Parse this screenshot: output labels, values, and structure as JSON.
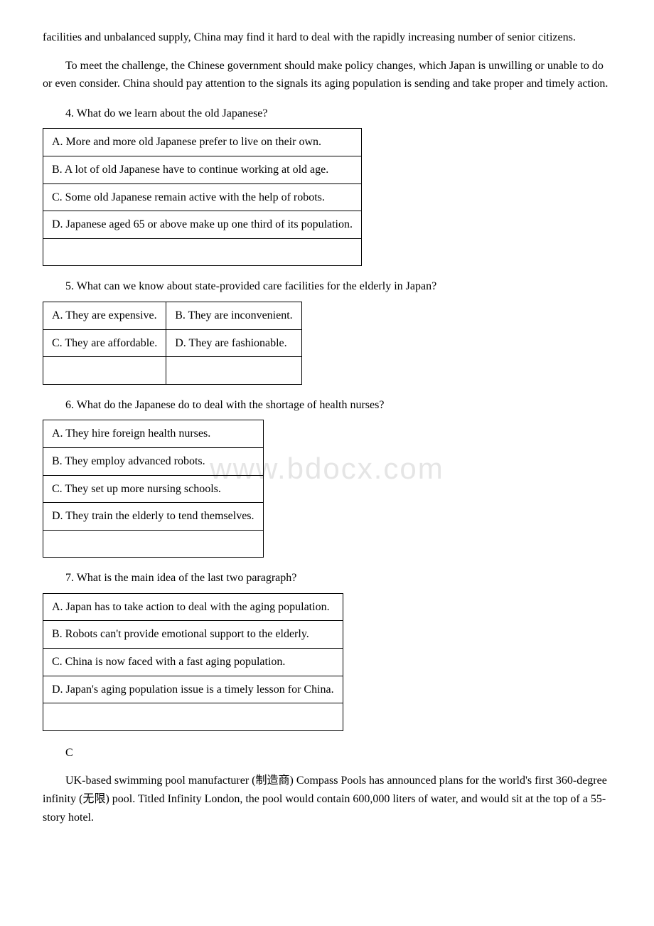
{
  "intro": {
    "p1": "facilities and unbalanced supply, China may find it hard to deal with the rapidly increasing number of senior citizens.",
    "p2": "To meet the challenge, the Chinese government should make policy changes, which Japan is unwilling or unable to do or even consider. China should pay attention to the signals its aging population is sending and take proper and timely action."
  },
  "q4": {
    "text": "4. What do we learn about the old Japanese?",
    "opts": {
      "a": "A. More and more old Japanese prefer to live on their own.",
      "b": "B. A lot of old Japanese have to continue working at old age.",
      "c": "C. Some old Japanese remain active with the help of robots.",
      "d": "D. Japanese aged 65 or above make up one third of its population."
    }
  },
  "q5": {
    "text": "5. What can we know about state-provided care facilities for the elderly in Japan?",
    "opts": {
      "a": "A. They are expensive.",
      "b": "B. They are inconvenient.",
      "c": "C. They are affordable.",
      "d": "D. They are fashionable."
    }
  },
  "q6": {
    "text": "6. What do the Japanese do to deal with the shortage of health nurses?",
    "opts": {
      "a": "A. They hire foreign health nurses.",
      "b": "B. They employ advanced robots.",
      "c": "C. They set up more nursing schools.",
      "d": "D. They train the elderly to tend themselves."
    }
  },
  "q7": {
    "text": "7. What is the main idea of the last two paragraph?",
    "opts": {
      "a": "A. Japan has to take action to deal with the aging population.",
      "b": "B. Robots can't provide emotional support to the elderly.",
      "c": "C. China is now faced with a fast aging population.",
      "d": "D. Japan's aging population issue is a timely lesson for China."
    }
  },
  "sectionC": {
    "label": "C",
    "p1": "UK-based swimming pool manufacturer (制造商) Compass Pools has announced plans for the world's first 360-degree infinity (无限) pool. Titled Infinity London, the pool would contain 600,000 liters of water, and would sit at the top of a 55-story hotel."
  },
  "watermark": "www.bdocx.com"
}
